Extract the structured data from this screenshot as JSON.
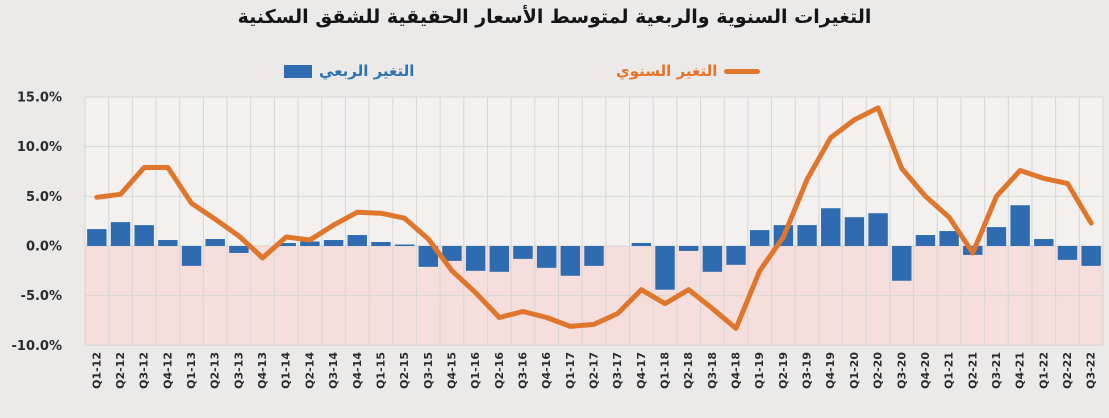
{
  "title": "التغيرات السنوية والربعية لمتوسط الأسعار الحقيقية للشقق السكنية",
  "legend": {
    "quarterly_label": "التغير الربعي",
    "annual_label": "التغير السنوي",
    "position": "top"
  },
  "colors": {
    "bar_blue": "#2E6BB0",
    "line_orange": "#E0752C",
    "legend_blue_text": "#2E74B5",
    "legend_orange_text": "#E8732A",
    "below_zero_fill": "#F5DEDB",
    "plot_background": "#F2F1F0",
    "page_background": "#ECEAE9",
    "gridline": "#D8D6D4",
    "tick_text": "#2b2b2b"
  },
  "chart_data": {
    "type": "bar",
    "subtype": "bar-line-combo",
    "title": "التغيرات السنوية والربعية لمتوسط الأسعار الحقيقية للشقق السكنية",
    "xlabel": "",
    "ylabel": "",
    "ylim": [
      -10,
      15
    ],
    "y_ticks": [
      "15.0%",
      "10.0%",
      "5.0%",
      "0.0%",
      "-5.0%",
      "-10.0%"
    ],
    "y_tick_values": [
      15,
      10,
      5,
      0,
      -5,
      -10
    ],
    "grid": true,
    "legend_position": "top",
    "below_zero_shading": true,
    "categories": [
      "Q1-12",
      "Q2-12",
      "Q3-12",
      "Q4-12",
      "Q1-13",
      "Q2-13",
      "Q3-13",
      "Q4-13",
      "Q1-14",
      "Q2-14",
      "Q3-14",
      "Q4-14",
      "Q1-15",
      "Q2-15",
      "Q3-15",
      "Q4-15",
      "Q1-16",
      "Q2-16",
      "Q3-16",
      "Q4-16",
      "Q1-17",
      "Q2-17",
      "Q3-17",
      "Q4-17",
      "Q1-18",
      "Q2-18",
      "Q3-18",
      "Q4-18",
      "Q1-19",
      "Q2-19",
      "Q3-19",
      "Q4-19",
      "Q1-20",
      "Q2-20",
      "Q3-20",
      "Q4-20",
      "Q1-21",
      "Q2-21",
      "Q3-21",
      "Q4-21",
      "Q1-22",
      "Q2-22",
      "Q3-22"
    ],
    "series": [
      {
        "name": "التغير الربعي",
        "render": "bar",
        "color": "#2E6BB0",
        "unit": "%",
        "values": [
          1.7,
          2.4,
          2.1,
          0.6,
          -2.0,
          0.7,
          -0.7,
          0.0,
          0.3,
          0.45,
          0.6,
          1.1,
          0.4,
          0.15,
          -2.1,
          -1.5,
          -2.5,
          -2.6,
          -1.3,
          -2.2,
          -3.0,
          -2.0,
          0.0,
          0.3,
          -4.4,
          -0.5,
          -2.6,
          -1.9,
          1.6,
          2.1,
          2.1,
          3.8,
          2.9,
          3.3,
          -3.5,
          1.1,
          1.5,
          -0.9,
          1.9,
          4.1,
          0.7,
          -1.4,
          -2.0
        ]
      },
      {
        "name": "التغير السنوي",
        "render": "line",
        "color": "#E0752C",
        "unit": "%",
        "values": [
          4.9,
          5.2,
          7.9,
          7.9,
          4.3,
          2.7,
          1.0,
          -1.2,
          0.9,
          0.6,
          2.1,
          3.4,
          3.3,
          2.8,
          0.7,
          -2.5,
          -4.7,
          -7.2,
          -6.6,
          -7.2,
          -8.1,
          -7.9,
          -6.8,
          -4.4,
          -5.8,
          -4.4,
          -6.3,
          -8.3,
          -2.5,
          0.9,
          6.7,
          10.9,
          12.7,
          13.9,
          7.8,
          5.0,
          2.9,
          -0.7,
          5.0,
          7.6,
          6.8,
          6.3,
          2.3
        ]
      }
    ]
  }
}
